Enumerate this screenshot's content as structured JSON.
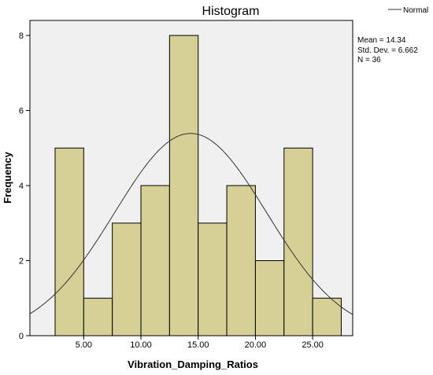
{
  "colors": {
    "plot_background": "#f0f0f0",
    "bar_fill": "#d6d096",
    "bar_stroke": "#000000",
    "curve": "#333333",
    "text": "#000000"
  },
  "chart_data": {
    "type": "bar",
    "title": "Histogram",
    "xlabel": "Vibration_Damping_Ratios",
    "ylabel": "Frequency",
    "bin_width": 2.5,
    "bins": [
      {
        "start": 2.5,
        "end": 5.0,
        "count": 5
      },
      {
        "start": 5.0,
        "end": 7.5,
        "count": 1
      },
      {
        "start": 7.5,
        "end": 10.0,
        "count": 3
      },
      {
        "start": 10.0,
        "end": 12.5,
        "count": 4
      },
      {
        "start": 12.5,
        "end": 15.0,
        "count": 8
      },
      {
        "start": 15.0,
        "end": 17.5,
        "count": 3
      },
      {
        "start": 17.5,
        "end": 20.0,
        "count": 4
      },
      {
        "start": 20.0,
        "end": 22.5,
        "count": 2
      },
      {
        "start": 22.5,
        "end": 25.0,
        "count": 5
      },
      {
        "start": 25.0,
        "end": 27.5,
        "count": 1
      }
    ],
    "xlim": [
      0.3,
      28.5
    ],
    "ylim": [
      0,
      8.4
    ],
    "x_ticks": [
      5,
      10,
      15,
      20,
      25
    ],
    "x_tick_labels": [
      "5.00",
      "10.00",
      "15.00",
      "20.00",
      "25.00"
    ],
    "y_ticks": [
      0,
      2,
      4,
      6,
      8
    ],
    "y_tick_labels": [
      "0",
      "2",
      "4",
      "6",
      "8"
    ],
    "normal_curve": {
      "mean": 14.34,
      "std_dev": 6.662,
      "n": 36
    },
    "legend": {
      "position": "top-right",
      "label": "Normal"
    },
    "stats_lines": [
      "Mean = 14.34",
      "Std. Dev. = 6.662",
      "N = 36"
    ],
    "grid": false
  }
}
